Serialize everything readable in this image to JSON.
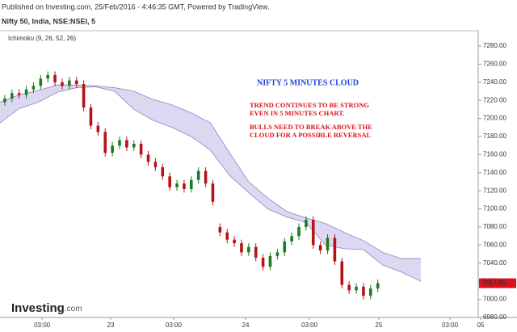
{
  "chart_data": {
    "type": "candlestick",
    "title": "Published on Investing.com, 25/Feb/2016 - 4:46:35 GMT, Powered by TradingView.",
    "subtitle": "Nifty 50, India, NSE:NSEI, 5",
    "indicator": "Ichimoku (9, 26, 52, 26)",
    "annotations": [
      "NIFTY 5 MINUTES CLOUD",
      "TREND CONTINUES TO BE STRONG",
      "EVEN IN 5 MINUTES CHART.",
      "BULLS NEED TO BREAK ABOVE THE",
      "CLOUD FOR A POSSIBLE REVERSAL"
    ],
    "logo": [
      "Investing",
      ".com"
    ],
    "up_color": "#1e7d1e",
    "down_color": "#b3141a",
    "x": [
      2,
      5,
      8,
      11,
      14,
      17,
      20,
      23,
      26,
      29,
      32,
      35,
      38,
      41,
      44,
      47,
      50,
      53,
      56,
      59,
      62,
      65,
      68,
      71,
      74,
      77,
      80,
      83,
      86,
      89,
      92,
      95,
      98,
      101,
      104,
      107,
      110,
      113,
      116,
      119,
      122,
      125,
      128,
      131,
      134,
      137,
      140,
      143,
      146,
      149,
      152,
      155,
      158
    ],
    "open": [
      7218,
      7222,
      7228,
      7226,
      7232,
      7236,
      7244,
      7248,
      7240,
      7236,
      7242,
      7238,
      7212,
      7192,
      7185,
      7162,
      7170,
      7176,
      7168,
      7172,
      7160,
      7152,
      7146,
      7136,
      7124,
      7128,
      7122,
      7132,
      7142,
      7128,
      7080,
      7074,
      7066,
      7062,
      7052,
      7058,
      7046,
      7036,
      7048,
      7052,
      7064,
      7070,
      7080,
      7088,
      7060,
      7054,
      7068,
      7042,
      7016,
      7010,
      7014,
      7004,
      7012
    ],
    "high": [
      7226,
      7232,
      7232,
      7236,
      7240,
      7248,
      7252,
      7252,
      7244,
      7246,
      7246,
      7242,
      7216,
      7196,
      7189,
      7174,
      7180,
      7180,
      7176,
      7176,
      7164,
      7156,
      7150,
      7140,
      7132,
      7132,
      7136,
      7146,
      7146,
      7132,
      7084,
      7078,
      7070,
      7066,
      7062,
      7062,
      7050,
      7052,
      7056,
      7068,
      7074,
      7084,
      7092,
      7092,
      7064,
      7072,
      7072,
      7046,
      7020,
      7018,
      7018,
      7016,
      7022
    ],
    "low": [
      7214,
      7218,
      7222,
      7222,
      7228,
      7232,
      7240,
      7236,
      7232,
      7232,
      7234,
      7208,
      7188,
      7181,
      7158,
      7158,
      7166,
      7164,
      7164,
      7156,
      7148,
      7142,
      7132,
      7120,
      7120,
      7118,
      7118,
      7128,
      7124,
      7104,
      7070,
      7062,
      7058,
      7048,
      7048,
      7042,
      7032,
      7032,
      7044,
      7048,
      7060,
      7066,
      7076,
      7056,
      7050,
      7050,
      7038,
      7012,
      7006,
      7006,
      7000,
      7000,
      7008
    ],
    "close": [
      7222,
      7228,
      7226,
      7232,
      7236,
      7244,
      7248,
      7240,
      7236,
      7242,
      7238,
      7212,
      7192,
      7185,
      7162,
      7170,
      7176,
      7168,
      7172,
      7160,
      7152,
      7146,
      7136,
      7124,
      7128,
      7122,
      7132,
      7142,
      7128,
      7108,
      7074,
      7066,
      7062,
      7052,
      7058,
      7046,
      7036,
      7048,
      7052,
      7064,
      7070,
      7080,
      7088,
      7060,
      7054,
      7068,
      7042,
      7016,
      7010,
      7014,
      7004,
      7012,
      7017.85
    ],
    "cloud": {
      "color": "#d9d4ef",
      "line_color": "#9b7fc4",
      "x": [
        0,
        8,
        16,
        24,
        32,
        40,
        48,
        56,
        64,
        72,
        80,
        88,
        96,
        104,
        112,
        120,
        128,
        136,
        144,
        152,
        160,
        168,
        176
      ],
      "upper": [
        7218,
        7226,
        7231,
        7237,
        7237,
        7236,
        7234,
        7230,
        7221,
        7215,
        7206,
        7195,
        7162,
        7130,
        7112,
        7097,
        7090,
        7084,
        7074,
        7065,
        7052,
        7045,
        7045
      ],
      "lower": [
        7195,
        7211,
        7218,
        7229,
        7234,
        7235,
        7230,
        7210,
        7198,
        7190,
        7180,
        7165,
        7137,
        7118,
        7100,
        7091,
        7085,
        7060,
        7056,
        7055,
        7038,
        7030,
        7020
      ]
    },
    "xlim": [
      0,
      200
    ],
    "ylim": [
      6980,
      7297
    ],
    "xticks": [
      {
        "value": 17.6,
        "label": "03:00"
      },
      {
        "value": 46.3,
        "label": "23"
      },
      {
        "value": 72.6,
        "label": "03:00"
      },
      {
        "value": 102.7,
        "label": "24"
      },
      {
        "value": 129.4,
        "label": "03:00"
      },
      {
        "value": 158.4,
        "label": "25"
      },
      {
        "value": 188.2,
        "label": "03:00"
      },
      {
        "value": 201,
        "label": "05"
      }
    ],
    "yticks": [
      {
        "value": 6980,
        "label": "6980.00"
      },
      {
        "value": 7000,
        "label": "7000.00"
      },
      {
        "value": 7020,
        "label": "7020.00"
      },
      {
        "value": 7040,
        "label": "7040.00"
      },
      {
        "value": 7060,
        "label": "7060.00"
      },
      {
        "value": 7080,
        "label": "7080.00"
      },
      {
        "value": 7100,
        "label": "7100.00"
      },
      {
        "value": 7120,
        "label": "7120.00"
      },
      {
        "value": 7140,
        "label": "7140.00"
      },
      {
        "value": 7160,
        "label": "7160.00"
      },
      {
        "value": 7180,
        "label": "7180.00"
      },
      {
        "value": 7200,
        "label": "7200.00"
      },
      {
        "value": 7220,
        "label": "7220.00"
      },
      {
        "value": 7240,
        "label": "7240.00"
      },
      {
        "value": 7260,
        "label": "7260.00"
      },
      {
        "value": 7280,
        "label": "7280.00"
      }
    ],
    "grid": false
  }
}
